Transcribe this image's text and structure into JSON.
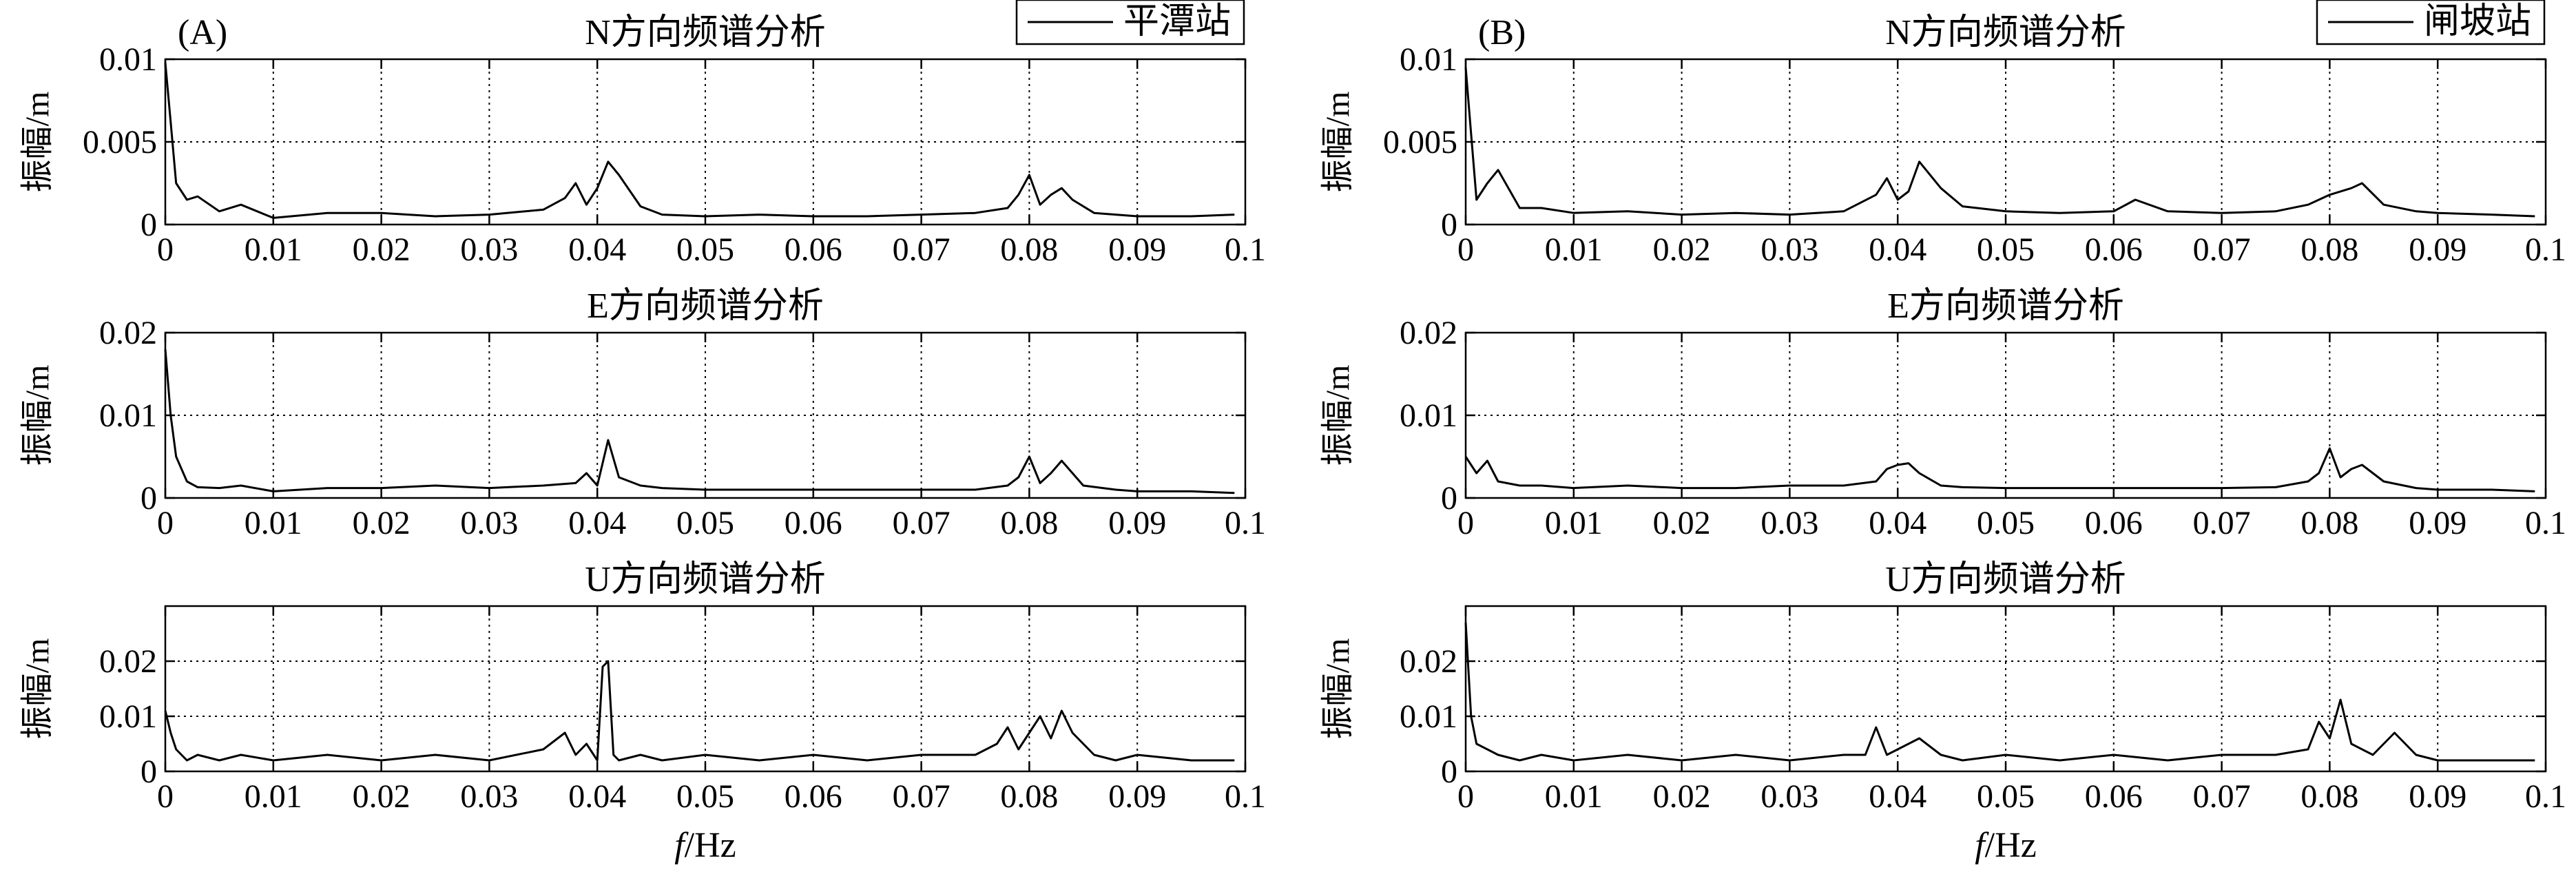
{
  "panels": [
    {
      "id": "A",
      "panel_label": "(A)",
      "legend": "平潭站",
      "xlabel_f": "f",
      "xlabel_unit": "/Hz"
    },
    {
      "id": "B",
      "panel_label": "(B)",
      "legend": "闸坡站",
      "xlabel_f": "f",
      "xlabel_unit": "/Hz"
    }
  ],
  "chart_data": [
    {
      "type": "line",
      "panel": "A",
      "title": "N方向频谱分析",
      "xlabel": "",
      "ylabel": "振幅/m",
      "xlim": [
        0,
        0.1
      ],
      "ylim": [
        0,
        0.01
      ],
      "xticks": [
        "0",
        "0.01",
        "0.02",
        "0.03",
        "0.04",
        "0.05",
        "0.06",
        "0.07",
        "0.08",
        "0.09",
        "0.1"
      ],
      "yticks": [
        "0",
        "0.005",
        "0.01"
      ],
      "grid": true,
      "series": [
        {
          "name": "平潭站",
          "x": [
            0,
            0.0005,
            0.001,
            0.002,
            0.003,
            0.005,
            0.007,
            0.01,
            0.015,
            0.02,
            0.025,
            0.03,
            0.035,
            0.037,
            0.038,
            0.039,
            0.04,
            0.041,
            0.042,
            0.044,
            0.046,
            0.05,
            0.055,
            0.06,
            0.065,
            0.07,
            0.075,
            0.078,
            0.079,
            0.08,
            0.081,
            0.082,
            0.083,
            0.084,
            0.086,
            0.088,
            0.09,
            0.095,
            0.099
          ],
          "y": [
            0.0098,
            0.0062,
            0.0025,
            0.0015,
            0.0017,
            0.0008,
            0.0012,
            0.0004,
            0.0007,
            0.0007,
            0.0005,
            0.0006,
            0.0009,
            0.0016,
            0.0025,
            0.0012,
            0.0022,
            0.0038,
            0.003,
            0.0011,
            0.0006,
            0.0005,
            0.0006,
            0.0005,
            0.0005,
            0.0006,
            0.0007,
            0.001,
            0.0018,
            0.003,
            0.0012,
            0.0018,
            0.0022,
            0.0015,
            0.0007,
            0.0006,
            0.0005,
            0.0005,
            0.0006
          ]
        }
      ]
    },
    {
      "type": "line",
      "panel": "A",
      "title": "E方向频谱分析",
      "xlabel": "",
      "ylabel": "振幅/m",
      "xlim": [
        0,
        0.1
      ],
      "ylim": [
        0,
        0.02
      ],
      "xticks": [
        "0",
        "0.01",
        "0.02",
        "0.03",
        "0.04",
        "0.05",
        "0.06",
        "0.07",
        "0.08",
        "0.09",
        "0.1"
      ],
      "yticks": [
        "0",
        "0.01",
        "0.02"
      ],
      "grid": true,
      "series": [
        {
          "name": "平潭站",
          "x": [
            0,
            0.0005,
            0.001,
            0.002,
            0.003,
            0.005,
            0.007,
            0.01,
            0.015,
            0.02,
            0.025,
            0.03,
            0.035,
            0.038,
            0.039,
            0.04,
            0.041,
            0.042,
            0.044,
            0.046,
            0.05,
            0.055,
            0.06,
            0.065,
            0.07,
            0.075,
            0.078,
            0.079,
            0.08,
            0.081,
            0.082,
            0.083,
            0.085,
            0.088,
            0.09,
            0.095,
            0.099
          ],
          "y": [
            0.018,
            0.01,
            0.005,
            0.002,
            0.0013,
            0.0012,
            0.0015,
            0.0008,
            0.0012,
            0.0012,
            0.0015,
            0.0012,
            0.0015,
            0.0018,
            0.003,
            0.0015,
            0.007,
            0.0025,
            0.0015,
            0.0012,
            0.001,
            0.001,
            0.001,
            0.001,
            0.001,
            0.001,
            0.0015,
            0.0025,
            0.005,
            0.0018,
            0.003,
            0.0045,
            0.0015,
            0.001,
            0.0008,
            0.0008,
            0.0006
          ]
        }
      ]
    },
    {
      "type": "line",
      "panel": "A",
      "title": "U方向频谱分析",
      "xlabel": "f/Hz",
      "ylabel": "振幅/m",
      "xlim": [
        0,
        0.1
      ],
      "ylim": [
        0,
        0.03
      ],
      "xticks": [
        "0",
        "0.01",
        "0.02",
        "0.03",
        "0.04",
        "0.05",
        "0.06",
        "0.07",
        "0.08",
        "0.09",
        "0.1"
      ],
      "yticks": [
        "0",
        "0.01",
        "0.02"
      ],
      "grid": true,
      "series": [
        {
          "name": "平潭站",
          "x": [
            0,
            0.0005,
            0.001,
            0.002,
            0.003,
            0.005,
            0.007,
            0.01,
            0.015,
            0.02,
            0.025,
            0.03,
            0.035,
            0.037,
            0.038,
            0.039,
            0.04,
            0.0405,
            0.041,
            0.0415,
            0.042,
            0.044,
            0.046,
            0.05,
            0.055,
            0.06,
            0.065,
            0.07,
            0.075,
            0.077,
            0.078,
            0.079,
            0.08,
            0.081,
            0.082,
            0.083,
            0.084,
            0.086,
            0.088,
            0.09,
            0.095,
            0.099
          ],
          "y": [
            0.011,
            0.007,
            0.004,
            0.002,
            0.003,
            0.002,
            0.003,
            0.002,
            0.003,
            0.002,
            0.003,
            0.002,
            0.004,
            0.007,
            0.003,
            0.005,
            0.002,
            0.019,
            0.02,
            0.003,
            0.002,
            0.003,
            0.002,
            0.003,
            0.002,
            0.003,
            0.002,
            0.003,
            0.003,
            0.005,
            0.008,
            0.004,
            0.007,
            0.01,
            0.006,
            0.011,
            0.007,
            0.003,
            0.002,
            0.003,
            0.002,
            0.002
          ]
        }
      ]
    },
    {
      "type": "line",
      "panel": "B",
      "title": "N方向频谱分析",
      "xlabel": "",
      "ylabel": "振幅/m",
      "xlim": [
        0,
        0.1
      ],
      "ylim": [
        0,
        0.01
      ],
      "xticks": [
        "0",
        "0.01",
        "0.02",
        "0.03",
        "0.04",
        "0.05",
        "0.06",
        "0.07",
        "0.08",
        "0.09",
        "0.1"
      ],
      "yticks": [
        "0",
        "0.005",
        "0.01"
      ],
      "grid": true,
      "series": [
        {
          "name": "闸坡站",
          "x": [
            0,
            0.0005,
            0.001,
            0.002,
            0.003,
            0.005,
            0.007,
            0.01,
            0.015,
            0.02,
            0.025,
            0.03,
            0.035,
            0.038,
            0.039,
            0.04,
            0.041,
            0.042,
            0.044,
            0.046,
            0.05,
            0.055,
            0.06,
            0.062,
            0.065,
            0.07,
            0.075,
            0.078,
            0.08,
            0.082,
            0.083,
            0.085,
            0.088,
            0.09,
            0.095,
            0.099
          ],
          "y": [
            0.0095,
            0.0055,
            0.0015,
            0.0025,
            0.0033,
            0.001,
            0.001,
            0.0007,
            0.0008,
            0.0006,
            0.0007,
            0.0006,
            0.0008,
            0.0018,
            0.0028,
            0.0015,
            0.002,
            0.0038,
            0.0022,
            0.0011,
            0.0008,
            0.0007,
            0.0008,
            0.0015,
            0.0008,
            0.0007,
            0.0008,
            0.0012,
            0.0018,
            0.0022,
            0.0025,
            0.0012,
            0.0008,
            0.0007,
            0.0006,
            0.0005
          ]
        }
      ]
    },
    {
      "type": "line",
      "panel": "B",
      "title": "E方向频谱分析",
      "xlabel": "",
      "ylabel": "振幅/m",
      "xlim": [
        0,
        0.1
      ],
      "ylim": [
        0,
        0.02
      ],
      "xticks": [
        "0",
        "0.01",
        "0.02",
        "0.03",
        "0.04",
        "0.05",
        "0.06",
        "0.07",
        "0.08",
        "0.09",
        "0.1"
      ],
      "yticks": [
        "0",
        "0.01",
        "0.02"
      ],
      "grid": true,
      "series": [
        {
          "name": "闸坡站",
          "x": [
            0,
            0.0005,
            0.001,
            0.002,
            0.003,
            0.005,
            0.007,
            0.01,
            0.015,
            0.02,
            0.025,
            0.03,
            0.035,
            0.038,
            0.039,
            0.04,
            0.041,
            0.042,
            0.044,
            0.046,
            0.05,
            0.055,
            0.06,
            0.065,
            0.07,
            0.075,
            0.078,
            0.079,
            0.08,
            0.081,
            0.082,
            0.083,
            0.085,
            0.088,
            0.09,
            0.095,
            0.099
          ],
          "y": [
            0.005,
            0.004,
            0.003,
            0.0045,
            0.002,
            0.0015,
            0.0015,
            0.0012,
            0.0015,
            0.0012,
            0.0012,
            0.0015,
            0.0015,
            0.002,
            0.0035,
            0.004,
            0.0042,
            0.003,
            0.0015,
            0.0013,
            0.0012,
            0.0012,
            0.0012,
            0.0012,
            0.0012,
            0.0013,
            0.002,
            0.003,
            0.006,
            0.0025,
            0.0035,
            0.004,
            0.002,
            0.0012,
            0.001,
            0.001,
            0.0008
          ]
        }
      ]
    },
    {
      "type": "line",
      "panel": "B",
      "title": "U方向频谱分析",
      "xlabel": "f/Hz",
      "ylabel": "振幅/m",
      "xlim": [
        0,
        0.1
      ],
      "ylim": [
        0,
        0.03
      ],
      "xticks": [
        "0",
        "0.01",
        "0.02",
        "0.03",
        "0.04",
        "0.05",
        "0.06",
        "0.07",
        "0.08",
        "0.09",
        "0.1"
      ],
      "yticks": [
        "0",
        "0.01",
        "0.02"
      ],
      "grid": true,
      "series": [
        {
          "name": "闸坡站",
          "x": [
            0,
            0.0005,
            0.001,
            0.002,
            0.003,
            0.005,
            0.007,
            0.01,
            0.015,
            0.02,
            0.025,
            0.03,
            0.035,
            0.037,
            0.038,
            0.039,
            0.04,
            0.042,
            0.044,
            0.046,
            0.05,
            0.055,
            0.06,
            0.065,
            0.07,
            0.075,
            0.078,
            0.079,
            0.08,
            0.081,
            0.082,
            0.084,
            0.086,
            0.088,
            0.09,
            0.095,
            0.099
          ],
          "y": [
            0.027,
            0.01,
            0.005,
            0.004,
            0.003,
            0.002,
            0.003,
            0.002,
            0.003,
            0.002,
            0.003,
            0.002,
            0.003,
            0.003,
            0.008,
            0.003,
            0.004,
            0.006,
            0.003,
            0.002,
            0.003,
            0.002,
            0.003,
            0.002,
            0.003,
            0.003,
            0.004,
            0.009,
            0.006,
            0.013,
            0.005,
            0.003,
            0.007,
            0.003,
            0.002,
            0.002,
            0.002
          ]
        }
      ]
    }
  ]
}
